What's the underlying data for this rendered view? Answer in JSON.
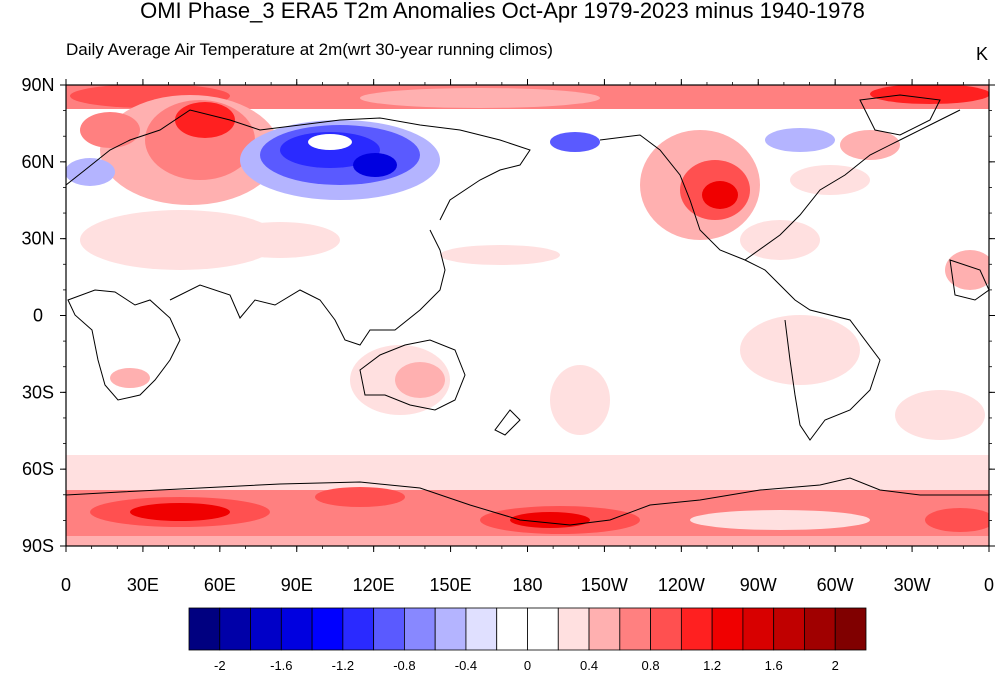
{
  "title": "OMI Phase_3 ERA5 T2m Anomalies Oct-Apr 1979-2023 minus 1940-1978",
  "subtitle_left": "Daily Average Air Temperature at 2m",
  "subtitle_center": "(wrt 30-year running climos)",
  "units": "K",
  "lat_labels": [
    "90N",
    "60N",
    "30N",
    "0",
    "30S",
    "60S",
    "90S"
  ],
  "lon_labels": [
    "0",
    "30E",
    "60E",
    "90E",
    "120E",
    "150E",
    "180",
    "150W",
    "120W",
    "90W",
    "60W",
    "30W",
    "0"
  ],
  "colorbar": {
    "colors": [
      "#000080",
      "#0000a8",
      "#0000c8",
      "#0000e0",
      "#0000ff",
      "#2a2aff",
      "#5a5aff",
      "#8888ff",
      "#b4b4ff",
      "#e0e0ff",
      "#ffffff",
      "#ffffff",
      "#ffe0e0",
      "#ffb0b0",
      "#ff8080",
      "#ff5050",
      "#ff2020",
      "#f00000",
      "#d80000",
      "#c00000",
      "#a00000",
      "#800000"
    ],
    "labels": [
      "-2",
      "-1.6",
      "-1.2",
      "-0.8",
      "-0.4",
      "0",
      "0.4",
      "0.8",
      "1.2",
      "1.6",
      "2"
    ]
  }
}
